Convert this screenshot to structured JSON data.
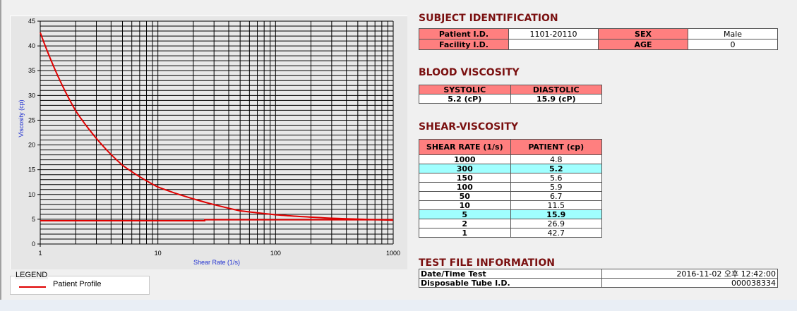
{
  "chart_data": {
    "type": "line",
    "xlabel": "Shear Rate (1/s)",
    "ylabel": "Viscosity (cp)",
    "xscale": "log",
    "xlim": [
      1,
      1000
    ],
    "ylim": [
      0,
      45
    ],
    "xticks": [
      "1",
      "10",
      "100",
      "1000"
    ],
    "yticks": [
      "0",
      "5",
      "10",
      "15",
      "20",
      "25",
      "30",
      "35",
      "40",
      "45"
    ],
    "grid": true,
    "legend_placement": "bottom-left",
    "series": [
      {
        "name": "Patient Profile",
        "color": "#e00000",
        "x": [
          1,
          2,
          5,
          10,
          50,
          100,
          150,
          300,
          1000
        ],
        "y": [
          42.7,
          26.9,
          15.9,
          11.5,
          6.7,
          5.9,
          5.6,
          5.2,
          4.8
        ]
      },
      {
        "color": "#e00000",
        "x": [
          1,
          25,
          25,
          1000
        ],
        "y": [
          4.7,
          4.7,
          4.9,
          4.9
        ]
      }
    ]
  },
  "legend": {
    "title": "LEGEND",
    "items": [
      "Patient Profile"
    ]
  },
  "subject": {
    "title": "SUBJECT IDENTIFICATION",
    "patient_id_label": "Patient I.D.",
    "patient_id": "1101-20110",
    "sex_label": "SEX",
    "sex": "Male",
    "facility_id_label": "Facility I.D.",
    "facility_id": "",
    "age_label": "AGE",
    "age": "0"
  },
  "blood": {
    "title": "BLOOD VISCOSITY",
    "systolic_label": "SYSTOLIC",
    "diastolic_label": "DIASTOLIC",
    "systolic": "5.2 (cP)",
    "diastolic": "15.9 (cP)"
  },
  "shear": {
    "title": "SHEAR-VISCOSITY",
    "headers": [
      "SHEAR RATE (1/s)",
      "PATIENT (cp)"
    ],
    "rows": [
      {
        "rate": "1000",
        "value": "4.8",
        "highlight": false
      },
      {
        "rate": "300",
        "value": "5.2",
        "highlight": true
      },
      {
        "rate": "150",
        "value": "5.6",
        "highlight": false
      },
      {
        "rate": "100",
        "value": "5.9",
        "highlight": false
      },
      {
        "rate": "50",
        "value": "6.7",
        "highlight": false
      },
      {
        "rate": "10",
        "value": "11.5",
        "highlight": false
      },
      {
        "rate": "5",
        "value": "15.9",
        "highlight": true
      },
      {
        "rate": "2",
        "value": "26.9",
        "highlight": false
      },
      {
        "rate": "1",
        "value": "42.7",
        "highlight": false
      }
    ]
  },
  "testfile": {
    "title": "TEST FILE INFORMATION",
    "date_label": "Date/Time Test",
    "date": "2016-11-02  오후 12:42:00",
    "tube_label": "Disposable Tube I.D.",
    "tube": "000038334"
  },
  "colors": {
    "header_pink": "#ff7f7f",
    "highlight_cyan": "#a0ffff",
    "title_red": "#7a1010",
    "curve": "#e00000"
  }
}
